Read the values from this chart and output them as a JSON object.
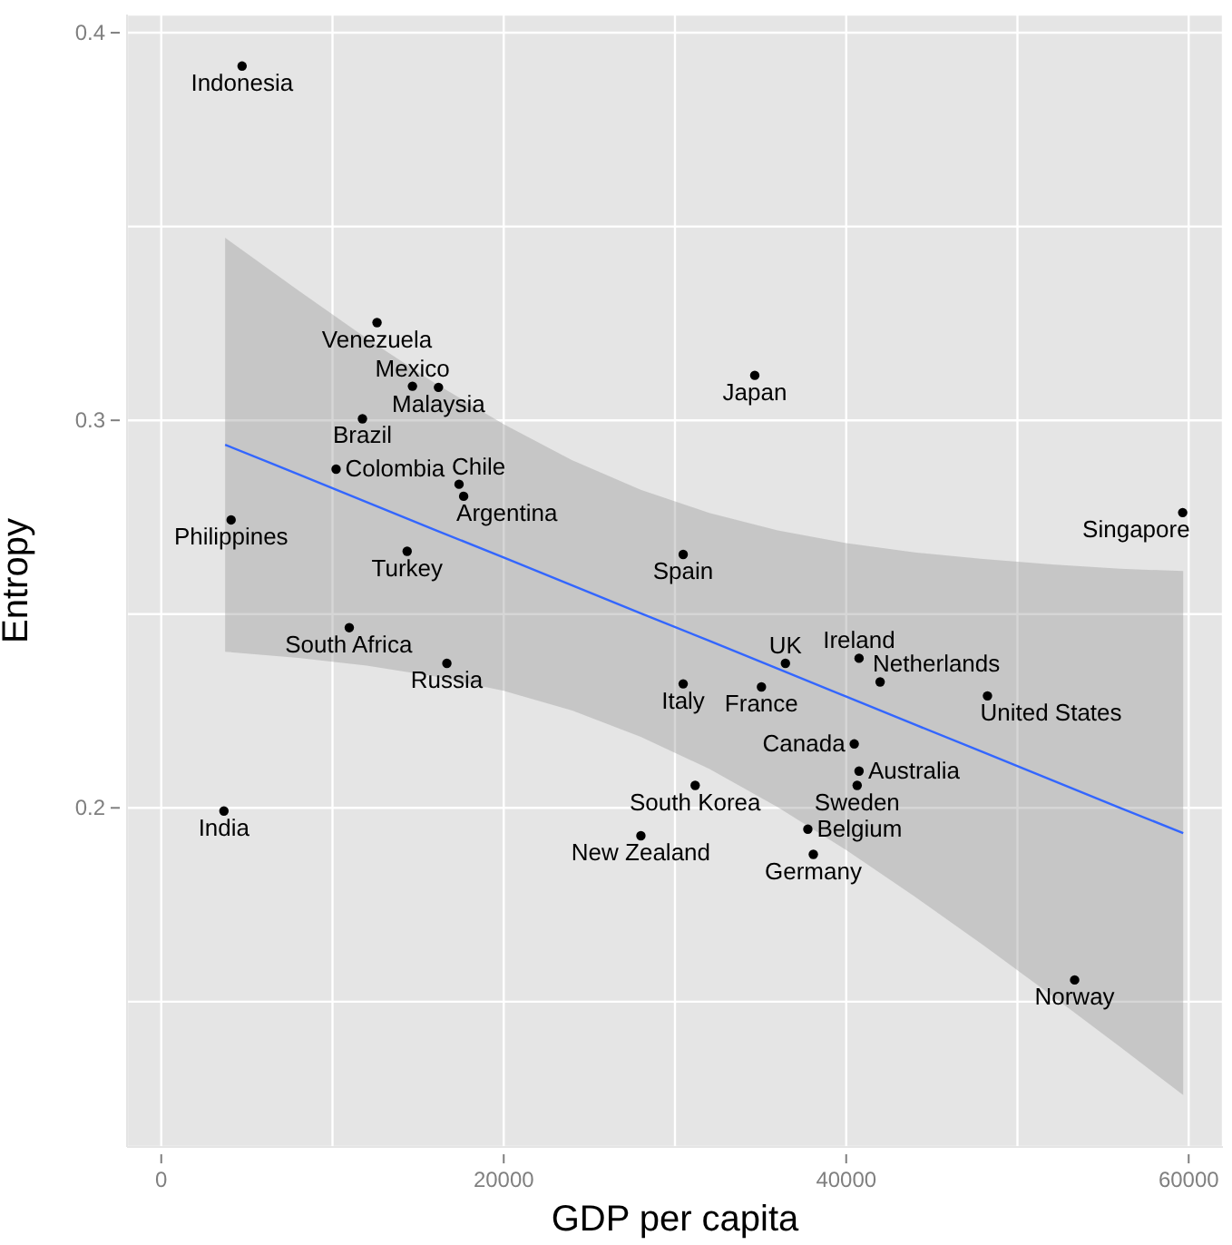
{
  "chart_data": {
    "type": "scatter",
    "xlabel": "GDP per capita",
    "ylabel": "Entropy",
    "xlim": [
      -2000,
      62000
    ],
    "ylim": [
      0.1125,
      0.4047
    ],
    "xticks": [
      0,
      {
        "value": 10000,
        "label": null
      },
      20000,
      {
        "value": 30000,
        "label": null
      },
      40000,
      {
        "value": 50000,
        "label": null
      },
      60000
    ],
    "yticks": [
      {
        "value": 0.15,
        "label": null
      },
      0.2,
      {
        "value": 0.25,
        "label": null
      },
      0.3,
      {
        "value": 0.35,
        "label": null
      },
      0.4
    ],
    "grid": true,
    "series": [
      {
        "marker": "circle",
        "color": "#000000",
        "x": [
          4720,
          12600,
          14670,
          16190,
          11750,
          10210,
          17390,
          17660,
          4080,
          14360,
          30480,
          34660,
          59650,
          10980,
          16680,
          30480,
          3660,
          28010,
          31180,
          40750,
          36450,
          35050,
          41980,
          48250,
          40470,
          40750,
          40640,
          37760,
          38080,
          53340
        ],
        "values": [
          0.3914,
          0.3252,
          0.3088,
          0.3085,
          0.3004,
          0.2874,
          0.2835,
          0.2804,
          0.2743,
          0.2662,
          0.2654,
          0.3116,
          0.2762,
          0.2465,
          0.2373,
          0.232,
          0.1992,
          0.1928,
          0.2058,
          0.2386,
          0.2373,
          0.2312,
          0.2325,
          0.2289,
          0.2165,
          0.2095,
          0.2058,
          0.1945,
          0.188,
          0.1556
        ]
      },
      {
        "type": "line",
        "color": "#3366ff",
        "x": [
          3730,
          8000,
          12000,
          16000,
          20000,
          24000,
          28000,
          32000,
          36000,
          40000,
          44000,
          48000,
          52000,
          56000,
          59680
        ],
        "values": [
          0.2937,
          0.2861,
          0.2789,
          0.2717,
          0.2646,
          0.2574,
          0.2502,
          0.2431,
          0.2359,
          0.2287,
          0.2215,
          0.2144,
          0.2072,
          0.2,
          0.1935
        ],
        "lower": [
          0.2403,
          0.2387,
          0.2367,
          0.2339,
          0.2302,
          0.2251,
          0.2183,
          0.2101,
          0.2002,
          0.1891,
          0.1771,
          0.1646,
          0.1516,
          0.1383,
          0.1259
        ],
        "upper": [
          0.3471,
          0.3335,
          0.3211,
          0.3095,
          0.299,
          0.2897,
          0.2821,
          0.2761,
          0.2716,
          0.2683,
          0.2659,
          0.2642,
          0.2628,
          0.2617,
          0.2611
        ]
      }
    ],
    "annotations": [
      {
        "text": "Indonesia",
        "x": 4720,
        "y": 0.3914
      },
      {
        "text": "Venezuela",
        "x": 12600,
        "y": 0.3252
      },
      {
        "text": "Mexico",
        "x": 14670,
        "y": 0.3088
      },
      {
        "text": "Malaysia",
        "x": 16190,
        "y": 0.3085
      },
      {
        "text": "Brazil",
        "x": 11750,
        "y": 0.3004
      },
      {
        "text": "Colombia",
        "x": 10210,
        "y": 0.2874
      },
      {
        "text": "Chile",
        "x": 17390,
        "y": 0.2835
      },
      {
        "text": "Argentina",
        "x": 17660,
        "y": 0.2804
      },
      {
        "text": "Philippines",
        "x": 4080,
        "y": 0.2743
      },
      {
        "text": "Turkey",
        "x": 14360,
        "y": 0.2662
      },
      {
        "text": "Spain",
        "x": 30480,
        "y": 0.2654
      },
      {
        "text": "Japan",
        "x": 34660,
        "y": 0.3116
      },
      {
        "text": "Singapore",
        "x": 59650,
        "y": 0.2762
      },
      {
        "text": "South Africa",
        "x": 10980,
        "y": 0.2465
      },
      {
        "text": "Russia",
        "x": 16680,
        "y": 0.2373
      },
      {
        "text": "Italy",
        "x": 30480,
        "y": 0.232
      },
      {
        "text": "India",
        "x": 3660,
        "y": 0.1992
      },
      {
        "text": "New Zealand",
        "x": 28010,
        "y": 0.1928
      },
      {
        "text": "South Korea",
        "x": 31180,
        "y": 0.2058
      },
      {
        "text": "Ireland",
        "x": 40750,
        "y": 0.2386
      },
      {
        "text": "UK",
        "x": 36450,
        "y": 0.2373
      },
      {
        "text": "France",
        "x": 35050,
        "y": 0.2312
      },
      {
        "text": "Netherlands",
        "x": 41980,
        "y": 0.2325
      },
      {
        "text": "United States",
        "x": 48250,
        "y": 0.2289
      },
      {
        "text": "Canada",
        "x": 40470,
        "y": 0.2165
      },
      {
        "text": "Australia",
        "x": 40750,
        "y": 0.2095
      },
      {
        "text": "Sweden",
        "x": 40640,
        "y": 0.2058
      },
      {
        "text": "Belgium",
        "x": 37760,
        "y": 0.1945
      },
      {
        "text": "Germany",
        "x": 38080,
        "y": 0.188
      },
      {
        "text": "Norway",
        "x": 53340,
        "y": 0.1556
      }
    ]
  }
}
